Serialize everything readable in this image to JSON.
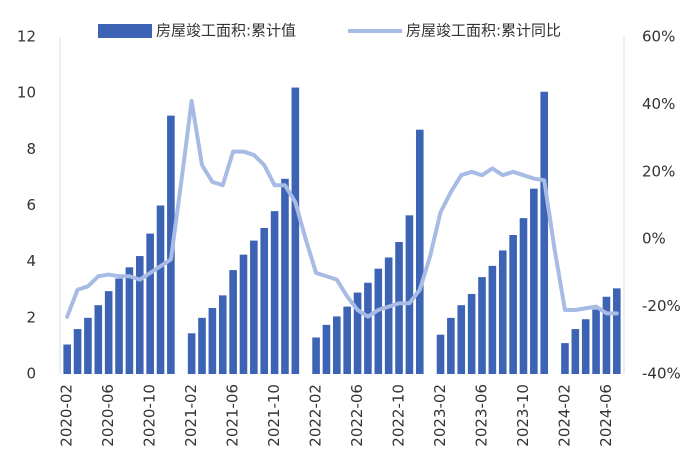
{
  "chart_data": {
    "type": "bar_line",
    "categories": [
      "2020-02",
      null,
      null,
      null,
      "2020-06",
      null,
      null,
      null,
      "2020-10",
      null,
      null,
      null,
      "2021-02",
      null,
      null,
      null,
      "2021-06",
      null,
      null,
      null,
      "2021-10",
      null,
      null,
      null,
      "2022-02",
      null,
      null,
      null,
      "2022-06",
      null,
      null,
      null,
      "2022-10",
      null,
      null,
      null,
      "2023-02",
      null,
      null,
      null,
      "2023-06",
      null,
      null,
      null,
      "2023-10",
      null,
      null,
      null,
      "2024-02",
      null,
      null,
      null,
      "2024-06",
      null
    ],
    "series": [
      {
        "name": "房屋竣工面积:累计值",
        "type": "bar",
        "color": "#3d63b5",
        "axis": "y",
        "values": [
          1.05,
          1.6,
          2.0,
          2.45,
          2.95,
          3.4,
          3.8,
          4.2,
          5.0,
          6.0,
          9.2,
          null,
          1.45,
          2.0,
          2.35,
          2.8,
          3.7,
          4.25,
          4.75,
          5.2,
          5.8,
          6.95,
          10.2,
          null,
          1.3,
          1.75,
          2.05,
          2.4,
          2.9,
          3.25,
          3.75,
          4.15,
          4.7,
          5.65,
          8.7,
          null,
          1.4,
          2.0,
          2.45,
          2.85,
          3.45,
          3.85,
          4.4,
          4.95,
          5.55,
          6.6,
          10.05,
          null,
          1.1,
          1.6,
          1.95,
          2.3,
          2.75,
          3.05
        ]
      },
      {
        "name": "房屋竣工面积:累计同比",
        "type": "line",
        "color": "#a7bbe5",
        "axis": "y2",
        "values": [
          -23,
          -15,
          -14,
          -11,
          -10.5,
          -11,
          -11,
          -12,
          -10,
          -8,
          -6,
          17,
          41,
          22,
          17,
          16,
          26,
          26,
          25,
          22,
          16,
          16,
          11,
          0,
          -10,
          -11,
          -12,
          -17,
          -21,
          -23,
          -21,
          -20,
          -19,
          -19,
          -15,
          -5,
          8,
          14,
          19,
          20,
          19,
          21,
          19,
          20,
          19,
          18,
          17.5,
          -3,
          -21,
          -21,
          -20.5,
          -20,
          -22,
          -22
        ]
      }
    ],
    "ylim": [
      0,
      12
    ],
    "yticks": [
      0,
      2,
      4,
      6,
      8,
      10,
      12
    ],
    "y2lim": [
      -40,
      60
    ],
    "y2ticks": [
      {
        "value": -40,
        "label": "-40%"
      },
      {
        "value": -20,
        "label": "-20%"
      },
      {
        "value": 0,
        "label": "0%"
      },
      {
        "value": 20,
        "label": "20%"
      },
      {
        "value": 40,
        "label": "40%"
      },
      {
        "value": 60,
        "label": "60%"
      }
    ],
    "grid": false,
    "legend": "top"
  }
}
